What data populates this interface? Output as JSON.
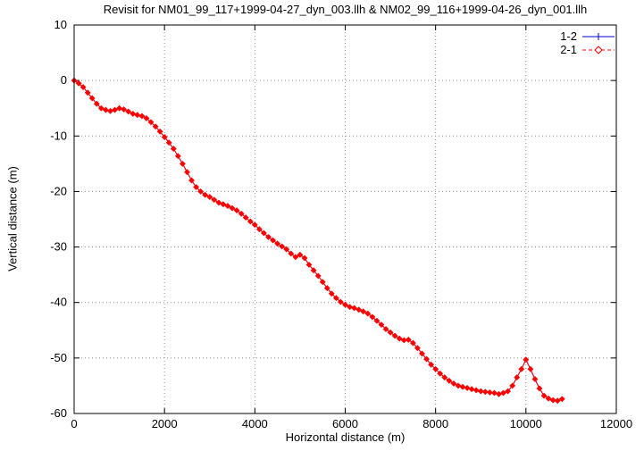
{
  "chart_data": {
    "type": "line",
    "title": "Revisit for NM01_99_117+1999-04-27_dyn_003.llh & NM02_99_116+1999-04-26_dyn_001.llh",
    "xlabel": "Horizontal distance (m)",
    "ylabel": "Vertical distance (m)",
    "xlim": [
      0,
      12000
    ],
    "ylim": [
      -60,
      10
    ],
    "xticks": [
      0,
      2000,
      4000,
      6000,
      8000,
      10000,
      12000
    ],
    "yticks": [
      10,
      0,
      -10,
      -20,
      -30,
      -40,
      -50,
      -60
    ],
    "grid": true,
    "grid_style": "dotted",
    "legend_position": "top-right-inside",
    "colors": {
      "axis": "#000000",
      "grid": "#909090",
      "background": "#ffffff"
    },
    "x": [
      0,
      100,
      200,
      300,
      400,
      500,
      600,
      700,
      800,
      900,
      1000,
      1100,
      1200,
      1300,
      1400,
      1500,
      1600,
      1700,
      1800,
      1900,
      2000,
      2100,
      2200,
      2300,
      2400,
      2500,
      2600,
      2700,
      2800,
      2900,
      3000,
      3100,
      3200,
      3300,
      3400,
      3500,
      3600,
      3700,
      3800,
      3900,
      4000,
      4100,
      4200,
      4300,
      4400,
      4500,
      4600,
      4700,
      4800,
      4900,
      5000,
      5100,
      5200,
      5300,
      5400,
      5500,
      5600,
      5700,
      5800,
      5900,
      6000,
      6100,
      6200,
      6300,
      6400,
      6500,
      6600,
      6700,
      6800,
      6900,
      7000,
      7100,
      7200,
      7300,
      7400,
      7500,
      7600,
      7700,
      7800,
      7900,
      8000,
      8100,
      8200,
      8300,
      8400,
      8500,
      8600,
      8700,
      8800,
      8900,
      9000,
      9100,
      9200,
      9300,
      9400,
      9500,
      9600,
      9700,
      9800,
      9900,
      10000,
      10100,
      10200,
      10300,
      10400,
      10500,
      10600,
      10700,
      10800
    ],
    "y_shared": [
      0.0,
      -0.5,
      -1.2,
      -2.2,
      -3.2,
      -4.2,
      -5.0,
      -5.3,
      -5.5,
      -5.3,
      -5.0,
      -5.2,
      -5.6,
      -6.0,
      -6.2,
      -6.4,
      -6.8,
      -7.5,
      -8.3,
      -9.2,
      -10.2,
      -11.2,
      -12.3,
      -13.6,
      -15.0,
      -16.5,
      -18.0,
      -19.2,
      -20.0,
      -20.6,
      -21.0,
      -21.5,
      -22.0,
      -22.3,
      -22.6,
      -23.0,
      -23.4,
      -24.0,
      -24.7,
      -25.4,
      -26.0,
      -26.8,
      -27.5,
      -28.2,
      -28.8,
      -29.4,
      -29.9,
      -30.4,
      -31.2,
      -31.8,
      -31.4,
      -32.0,
      -33.2,
      -34.2,
      -35.2,
      -36.3,
      -37.4,
      -38.4,
      -39.2,
      -39.9,
      -40.4,
      -40.8,
      -41.0,
      -41.3,
      -41.6,
      -42.0,
      -42.6,
      -43.3,
      -44.0,
      -44.8,
      -45.4,
      -46.0,
      -46.5,
      -46.8,
      -46.7,
      -47.3,
      -48.2,
      -49.2,
      -50.2,
      -51.2,
      -52.0,
      -52.8,
      -53.5,
      -54.1,
      -54.6,
      -55.0,
      -55.2,
      -55.4,
      -55.6,
      -55.8,
      -56.0,
      -56.1,
      -56.2,
      -56.3,
      -56.5,
      -56.3,
      -56.0,
      -55.0,
      -53.5,
      -52.0,
      -50.3,
      -52.0,
      -53.8,
      -55.5,
      -56.8,
      -57.3,
      -57.6,
      -57.7,
      -57.4
    ],
    "series": [
      {
        "name": "1-2",
        "color": "#0000cc",
        "marker": "plus",
        "dash": "solid",
        "y": "shared"
      },
      {
        "name": "2-1",
        "color": "#ff0000",
        "marker": "diamond",
        "dash": "dashed",
        "y": "shared"
      }
    ]
  }
}
